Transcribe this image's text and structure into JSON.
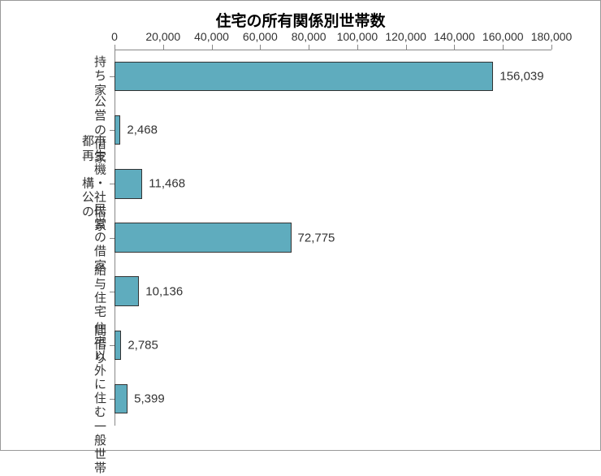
{
  "chart": {
    "type": "bar-horizontal",
    "title": "住宅の所有関係別世帯数",
    "title_fontsize": 19,
    "title_color": "#000000",
    "background_color": "#ffffff",
    "border_color": "#999999",
    "bar_color": "#5facbe",
    "bar_border_color": "#333333",
    "axis_color": "#888888",
    "label_color": "#333333",
    "tick_label_fontsize": 14,
    "category_label_fontsize": 15,
    "value_label_fontsize": 15,
    "xlim": [
      0,
      180000
    ],
    "xtick_step": 20000,
    "xtick_labels": [
      "0",
      "20,000",
      "40,000",
      "60,000",
      "80,000",
      "100,000",
      "120,000",
      "140,000",
      "160,000",
      "180,000"
    ],
    "bar_width_ratio": 0.55,
    "categories": [
      "持ち家",
      "公営の借家",
      "都市再生機構・\n公社の借家",
      "民営の借家",
      "給与住宅",
      "間借り",
      "住宅以外に住む\n一般世帯"
    ],
    "values": [
      156039,
      2468,
      11468,
      72775,
      10136,
      2785,
      5399
    ],
    "value_labels": [
      "156,039",
      "2,468",
      "11,468",
      "72,775",
      "10,136",
      "2,785",
      "5,399"
    ]
  }
}
